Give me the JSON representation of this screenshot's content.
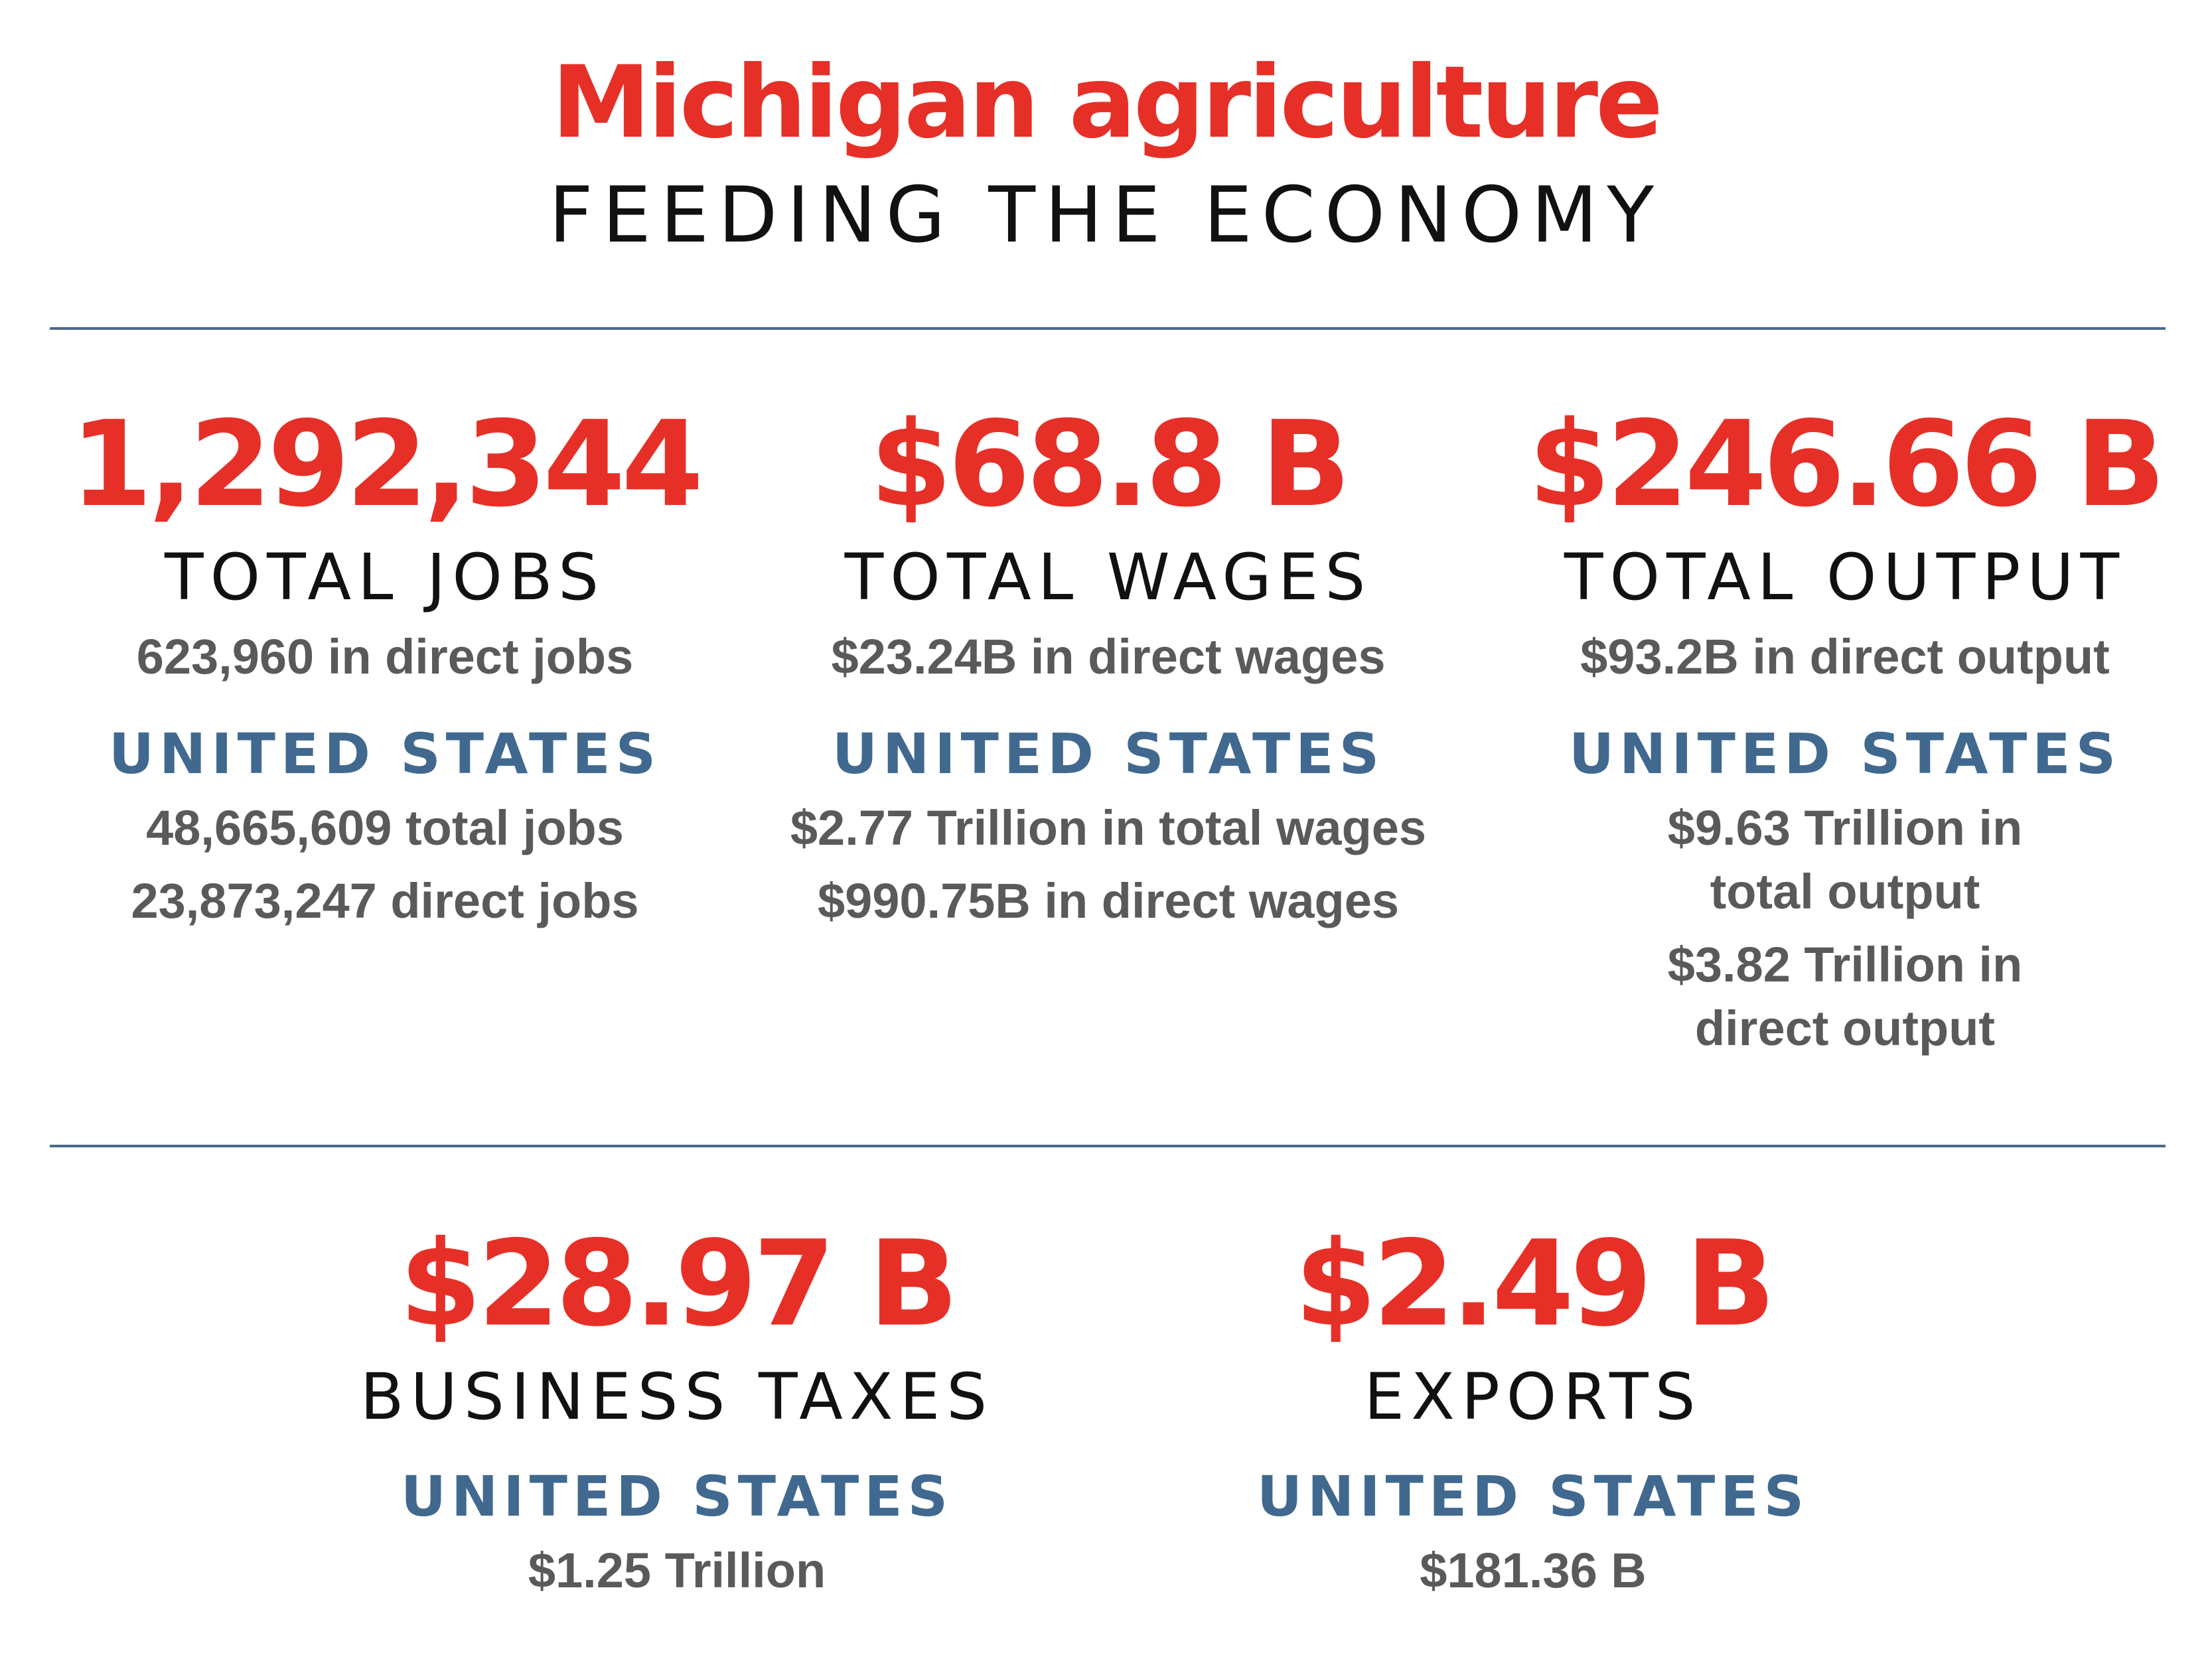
{
  "header": {
    "title": "Michigan agriculture",
    "subtitle": "FEEDING THE ECONOMY"
  },
  "stats": [
    {
      "value": "1,292,344",
      "label": "TOTAL JOBS",
      "direct": "623,960 in direct jobs",
      "us_heading": "UNITED STATES",
      "us_lines": [
        "48,665,609 total jobs",
        "23,873,247 direct jobs"
      ]
    },
    {
      "value": "$68.8 B",
      "label": "TOTAL WAGES",
      "direct": "$23.24B in direct wages",
      "us_heading": "UNITED STATES",
      "us_lines": [
        "$2.77 Trillion in total wages",
        "$990.75B in direct wages"
      ]
    },
    {
      "value": "$246.66 B",
      "label": "TOTAL OUTPUT",
      "direct": "$93.2B in direct output",
      "us_heading": "UNITED STATES",
      "us_lines": [
        "$9.63 Trillion in total output",
        "$3.82 Trillion in direct output"
      ]
    },
    {
      "value": "$28.97 B",
      "label": "BUSINESS TAXES",
      "us_heading": "UNITED STATES",
      "us_lines": [
        "$1.25 Trillion"
      ]
    },
    {
      "value": "$2.49 B",
      "label": "EXPORTS",
      "us_heading": "UNITED STATES",
      "us_lines": [
        "$181.36 B"
      ]
    }
  ],
  "colors": {
    "accent_red": "#e63027",
    "heading_blue": "#41698f",
    "text_gray": "#5a5a5a",
    "divider": "#4a6a8a"
  }
}
